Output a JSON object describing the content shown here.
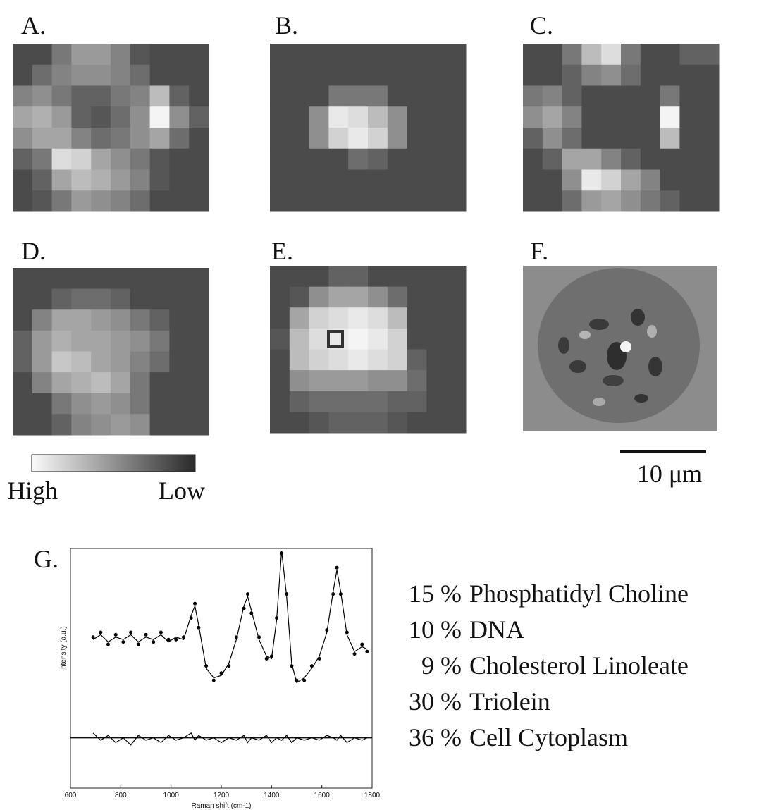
{
  "panels": [
    {
      "label": "A.",
      "grid": [
        [
          0.2,
          0.2,
          0.4,
          0.55,
          0.55,
          0.45,
          0.25,
          0.2,
          0.2,
          0.2
        ],
        [
          0.2,
          0.35,
          0.45,
          0.5,
          0.5,
          0.45,
          0.35,
          0.2,
          0.2,
          0.2
        ],
        [
          0.45,
          0.5,
          0.4,
          0.3,
          0.3,
          0.4,
          0.45,
          0.7,
          0.3,
          0.2
        ],
        [
          0.6,
          0.65,
          0.55,
          0.3,
          0.25,
          0.35,
          0.5,
          0.95,
          0.5,
          0.3
        ],
        [
          0.5,
          0.6,
          0.6,
          0.45,
          0.35,
          0.4,
          0.5,
          0.6,
          0.35,
          0.2
        ],
        [
          0.3,
          0.4,
          0.85,
          0.8,
          0.6,
          0.5,
          0.4,
          0.25,
          0.2,
          0.2
        ],
        [
          0.2,
          0.3,
          0.6,
          0.7,
          0.65,
          0.55,
          0.45,
          0.25,
          0.2,
          0.2
        ],
        [
          0.2,
          0.25,
          0.4,
          0.55,
          0.5,
          0.45,
          0.35,
          0.2,
          0.2,
          0.2
        ]
      ]
    },
    {
      "label": "B.",
      "grid": [
        [
          0.2,
          0.2,
          0.2,
          0.2,
          0.2,
          0.2,
          0.2,
          0.2,
          0.2,
          0.2
        ],
        [
          0.2,
          0.2,
          0.2,
          0.2,
          0.2,
          0.2,
          0.2,
          0.2,
          0.2,
          0.2
        ],
        [
          0.2,
          0.2,
          0.2,
          0.4,
          0.4,
          0.4,
          0.2,
          0.2,
          0.2,
          0.2
        ],
        [
          0.2,
          0.2,
          0.5,
          0.9,
          0.85,
          0.7,
          0.5,
          0.2,
          0.2,
          0.2
        ],
        [
          0.2,
          0.2,
          0.5,
          0.8,
          0.9,
          0.8,
          0.5,
          0.2,
          0.2,
          0.2
        ],
        [
          0.2,
          0.2,
          0.2,
          0.2,
          0.35,
          0.3,
          0.2,
          0.2,
          0.2,
          0.2
        ],
        [
          0.2,
          0.2,
          0.2,
          0.2,
          0.2,
          0.2,
          0.2,
          0.2,
          0.2,
          0.2
        ],
        [
          0.2,
          0.2,
          0.2,
          0.2,
          0.2,
          0.2,
          0.2,
          0.2,
          0.2,
          0.2
        ]
      ]
    },
    {
      "label": "C.",
      "grid": [
        [
          0.2,
          0.2,
          0.4,
          0.7,
          0.85,
          0.4,
          0.2,
          0.2,
          0.3,
          0.3
        ],
        [
          0.2,
          0.2,
          0.3,
          0.45,
          0.5,
          0.35,
          0.2,
          0.2,
          0.2,
          0.2
        ],
        [
          0.4,
          0.45,
          0.3,
          0.2,
          0.2,
          0.2,
          0.2,
          0.4,
          0.2,
          0.2
        ],
        [
          0.5,
          0.6,
          0.45,
          0.2,
          0.2,
          0.2,
          0.2,
          0.95,
          0.2,
          0.2
        ],
        [
          0.3,
          0.5,
          0.35,
          0.2,
          0.2,
          0.2,
          0.2,
          0.7,
          0.2,
          0.2
        ],
        [
          0.2,
          0.3,
          0.6,
          0.6,
          0.45,
          0.3,
          0.2,
          0.2,
          0.2,
          0.2
        ],
        [
          0.2,
          0.2,
          0.5,
          0.9,
          0.8,
          0.6,
          0.45,
          0.2,
          0.2,
          0.2
        ],
        [
          0.2,
          0.2,
          0.35,
          0.55,
          0.6,
          0.5,
          0.4,
          0.3,
          0.2,
          0.2
        ]
      ]
    },
    {
      "label": "D.",
      "grid": [
        [
          0.2,
          0.2,
          0.2,
          0.2,
          0.2,
          0.2,
          0.2,
          0.2,
          0.2,
          0.2
        ],
        [
          0.2,
          0.2,
          0.3,
          0.35,
          0.35,
          0.3,
          0.2,
          0.2,
          0.2,
          0.2
        ],
        [
          0.2,
          0.45,
          0.6,
          0.6,
          0.55,
          0.5,
          0.4,
          0.3,
          0.2,
          0.2
        ],
        [
          0.3,
          0.55,
          0.65,
          0.6,
          0.6,
          0.55,
          0.5,
          0.4,
          0.2,
          0.2
        ],
        [
          0.3,
          0.55,
          0.75,
          0.7,
          0.6,
          0.55,
          0.45,
          0.35,
          0.2,
          0.2
        ],
        [
          0.2,
          0.45,
          0.6,
          0.65,
          0.7,
          0.6,
          0.4,
          0.2,
          0.2,
          0.2
        ],
        [
          0.2,
          0.2,
          0.4,
          0.5,
          0.55,
          0.5,
          0.4,
          0.2,
          0.2,
          0.2
        ],
        [
          0.2,
          0.2,
          0.3,
          0.45,
          0.5,
          0.55,
          0.5,
          0.2,
          0.2,
          0.2
        ]
      ]
    },
    {
      "label": "E.",
      "grid": [
        [
          0.2,
          0.2,
          0.2,
          0.3,
          0.3,
          0.2,
          0.2,
          0.2,
          0.2,
          0.2
        ],
        [
          0.2,
          0.25,
          0.5,
          0.6,
          0.6,
          0.5,
          0.35,
          0.2,
          0.2,
          0.2
        ],
        [
          0.2,
          0.6,
          0.8,
          0.85,
          0.9,
          0.85,
          0.7,
          0.2,
          0.2,
          0.2
        ],
        [
          0.25,
          0.7,
          0.85,
          0.9,
          0.95,
          0.9,
          0.8,
          0.2,
          0.2,
          0.2
        ],
        [
          0.2,
          0.7,
          0.8,
          0.85,
          0.9,
          0.85,
          0.8,
          0.3,
          0.2,
          0.2
        ],
        [
          0.2,
          0.5,
          0.55,
          0.55,
          0.55,
          0.5,
          0.5,
          0.35,
          0.2,
          0.2
        ],
        [
          0.2,
          0.3,
          0.35,
          0.35,
          0.35,
          0.35,
          0.3,
          0.3,
          0.2,
          0.2
        ],
        [
          0.2,
          0.2,
          0.25,
          0.3,
          0.3,
          0.3,
          0.25,
          0.2,
          0.2,
          0.2
        ]
      ]
    },
    {
      "label": "F."
    }
  ],
  "colorbar": {
    "high": "High",
    "low": "Low"
  },
  "scale_bar": "10 μm",
  "chart_data": {
    "type": "line",
    "panel_label": "G.",
    "x_label": "Raman shift (cm-1)",
    "y_label": "Intensity (a.u.)",
    "xlim": [
      600,
      1800
    ],
    "xticks": [
      600,
      800,
      1000,
      1200,
      1400,
      1600,
      1800
    ],
    "ylim": [
      0,
      1
    ],
    "x": [
      690,
      720,
      750,
      780,
      810,
      840,
      870,
      900,
      930,
      960,
      990,
      1020,
      1050,
      1080,
      1095,
      1110,
      1140,
      1170,
      1200,
      1230,
      1260,
      1290,
      1305,
      1320,
      1350,
      1380,
      1400,
      1420,
      1440,
      1460,
      1480,
      1500,
      1530,
      1560,
      1590,
      1620,
      1645,
      1660,
      1675,
      1700,
      1730,
      1760,
      1780
    ],
    "series": [
      {
        "style": "line",
        "color": "#000000",
        "values": [
          0.62,
          0.64,
          0.61,
          0.63,
          0.62,
          0.64,
          0.61,
          0.63,
          0.62,
          0.64,
          0.61,
          0.63,
          0.62,
          0.72,
          0.76,
          0.68,
          0.5,
          0.46,
          0.47,
          0.52,
          0.62,
          0.76,
          0.8,
          0.74,
          0.62,
          0.55,
          0.54,
          0.7,
          0.99,
          0.8,
          0.52,
          0.44,
          0.46,
          0.5,
          0.55,
          0.65,
          0.82,
          0.91,
          0.82,
          0.64,
          0.57,
          0.59,
          0.58
        ]
      },
      {
        "style": "points",
        "color": "#000000",
        "values": [
          0.63,
          0.65,
          0.6,
          0.64,
          0.61,
          0.65,
          0.6,
          0.64,
          0.61,
          0.65,
          0.62,
          0.62,
          0.63,
          0.71,
          0.77,
          0.67,
          0.51,
          0.45,
          0.48,
          0.51,
          0.63,
          0.75,
          0.81,
          0.73,
          0.63,
          0.54,
          0.55,
          0.71,
          0.98,
          0.81,
          0.51,
          0.45,
          0.45,
          0.51,
          0.54,
          0.66,
          0.81,
          0.92,
          0.81,
          0.65,
          0.56,
          0.6,
          0.57
        ]
      },
      {
        "style": "line",
        "color": "#000000",
        "values": [
          0.23,
          0.2,
          0.22,
          0.19,
          0.21,
          0.18,
          0.22,
          0.2,
          0.21,
          0.19,
          0.22,
          0.2,
          0.21,
          0.23,
          0.2,
          0.22,
          0.2,
          0.21,
          0.19,
          0.21,
          0.2,
          0.22,
          0.19,
          0.21,
          0.2,
          0.22,
          0.19,
          0.21,
          0.2,
          0.22,
          0.19,
          0.21,
          0.2,
          0.21,
          0.2,
          0.22,
          0.21,
          0.2,
          0.22,
          0.19,
          0.21,
          0.2,
          0.21
        ]
      }
    ],
    "residual_baseline": 0.21
  },
  "composition": [
    {
      "amount": "15 %",
      "name": "Phosphatidyl Choline"
    },
    {
      "amount": "10 %",
      "name": "DNA"
    },
    {
      "amount": "9 %",
      "name": "Cholesterol Linoleate"
    },
    {
      "amount": "30 %",
      "name": "Triolein"
    },
    {
      "amount": "36 %",
      "name": "Cell Cytoplasm"
    }
  ]
}
